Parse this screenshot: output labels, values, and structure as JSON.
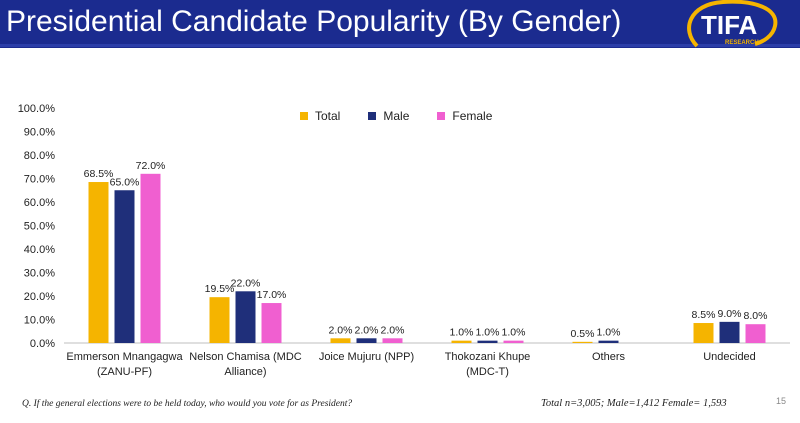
{
  "header": {
    "title": "Presidential Candidate Popularity (By Gender)",
    "logo_text": "TIFA",
    "logo_subtext": "RESEARCH"
  },
  "colors": {
    "header_bg": "#1b2b8f",
    "total": "#f5b400",
    "male": "#1f2f7a",
    "female": "#f05fd0",
    "logo_ring": "#f5b400"
  },
  "chart_data": {
    "type": "bar",
    "categories": [
      [
        "Emmerson Mnangagwa",
        "(ZANU-PF)"
      ],
      [
        "Nelson Chamisa (MDC",
        "Alliance)"
      ],
      [
        "Joice Mujuru  (NPP)"
      ],
      [
        "Thokozani Khupe",
        "(MDC-T)"
      ],
      [
        "Others"
      ],
      [
        "Undecided"
      ]
    ],
    "series": [
      {
        "name": "Total",
        "values": [
          68.5,
          19.5,
          2.0,
          1.0,
          0.5,
          8.5
        ],
        "labels": [
          "68.5%",
          "19.5%",
          "2.0%",
          "1.0%",
          "0.5%",
          "8.5%"
        ]
      },
      {
        "name": "Male",
        "values": [
          65.0,
          22.0,
          2.0,
          1.0,
          1.0,
          9.0
        ],
        "labels": [
          "65.0%",
          "22.0%",
          "2.0%",
          "1.0%",
          "1.0%",
          "9.0%"
        ]
      },
      {
        "name": "Female",
        "values": [
          72.0,
          17.0,
          2.0,
          1.0,
          null,
          8.0
        ],
        "labels": [
          "72.0%",
          "17.0%",
          "2.0%",
          "1.0%",
          "",
          "8.0%"
        ]
      }
    ],
    "ylim": [
      0,
      100
    ],
    "yticks": [
      "0.0%",
      "10.0%",
      "20.0%",
      "30.0%",
      "40.0%",
      "50.0%",
      "60.0%",
      "70.0%",
      "80.0%",
      "90.0%",
      "100.0%"
    ],
    "grid": false,
    "legend_position": "top-center",
    "title": "",
    "xlabel": "",
    "ylabel": ""
  },
  "footer": {
    "question": "Q. If the general elections were to be held today, who would you vote for as President?",
    "sample": "Total n=3,005; Male=1,412  Female= 1,593",
    "slide_number": "15"
  }
}
